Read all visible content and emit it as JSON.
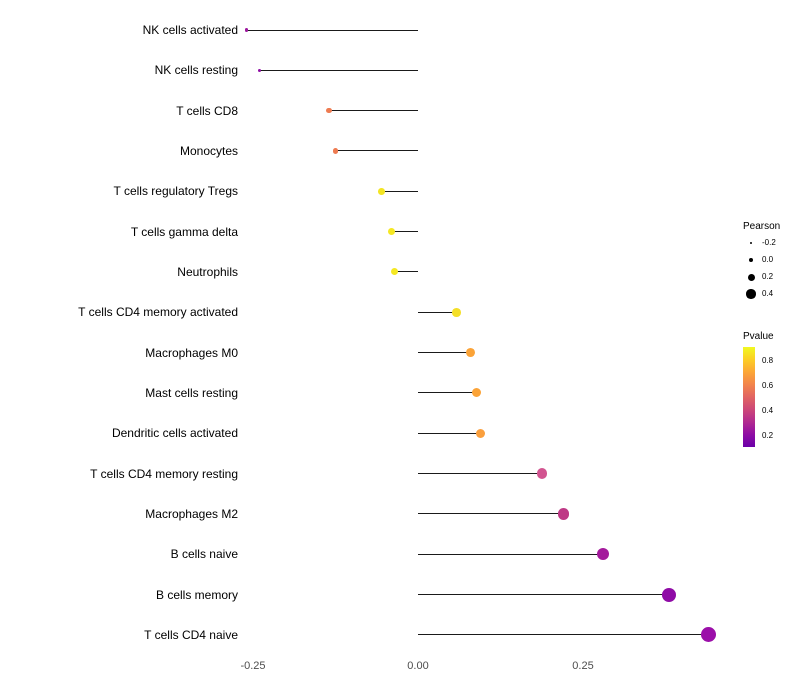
{
  "figure": {
    "background": "#ffffff"
  },
  "chart_data": {
    "type": "lollipop",
    "title": "",
    "xlabel": "",
    "ylabel": "",
    "orientation": "horizontal",
    "grid": "off",
    "baseline": 0.0,
    "x_axis": {
      "tick_values": [
        -0.25,
        0.0,
        0.25
      ],
      "tick_labels": [
        "-0.25",
        "0.00",
        "0.25"
      ],
      "range": [
        -0.28,
        0.49
      ]
    },
    "points": [
      {
        "label": "NK cells activated",
        "pearson": -0.26,
        "pvalue": 0.25,
        "color": "#9C179E"
      },
      {
        "label": "NK cells resting",
        "pearson": -0.24,
        "pvalue": 0.2,
        "color": "#8F0DA4"
      },
      {
        "label": "T cells CD8",
        "pearson": -0.135,
        "pvalue": 0.6,
        "color": "#EE7B51"
      },
      {
        "label": "Monocytes",
        "pearson": -0.125,
        "pvalue": 0.6,
        "color": "#EE7B51"
      },
      {
        "label": "T cells regulatory Tregs",
        "pearson": -0.055,
        "pvalue": 0.85,
        "color": "#F3E524"
      },
      {
        "label": "T cells gamma delta",
        "pearson": -0.04,
        "pvalue": 0.85,
        "color": "#F5E823"
      },
      {
        "label": "Neutrophils",
        "pearson": -0.035,
        "pvalue": 0.85,
        "color": "#F5E823"
      },
      {
        "label": "T cells CD4 memory activated",
        "pearson": 0.058,
        "pvalue": 0.8,
        "color": "#F4DF28"
      },
      {
        "label": "Macrophages M0",
        "pearson": 0.08,
        "pvalue": 0.7,
        "color": "#FBA337"
      },
      {
        "label": "Mast cells resting",
        "pearson": 0.088,
        "pvalue": 0.7,
        "color": "#FBA337"
      },
      {
        "label": "Dendritic cells activated",
        "pearson": 0.095,
        "pvalue": 0.68,
        "color": "#FA9F3D"
      },
      {
        "label": "T cells CD4 memory resting",
        "pearson": 0.188,
        "pvalue": 0.45,
        "color": "#D25490"
      },
      {
        "label": "Macrophages M2",
        "pearson": 0.22,
        "pvalue": 0.38,
        "color": "#BE3885"
      },
      {
        "label": "B cells naive",
        "pearson": 0.28,
        "pvalue": 0.3,
        "color": "#A41A9C"
      },
      {
        "label": "B cells memory",
        "pearson": 0.38,
        "pvalue": 0.18,
        "color": "#8F0BA6"
      },
      {
        "label": "T cells CD4 naive",
        "pearson": 0.44,
        "pvalue": 0.15,
        "color": "#9B0FA9"
      }
    ],
    "legend": {
      "position": "right",
      "size_legend": {
        "title": "Pearson",
        "entries": [
          {
            "label": "-0.2",
            "value": -0.2
          },
          {
            "label": "0.0",
            "value": 0.0
          },
          {
            "label": "0.2",
            "value": 0.2
          },
          {
            "label": "0.4",
            "value": 0.4
          }
        ]
      },
      "color_legend": {
        "title": "Pvalue",
        "tick_labels": [
          "0.8",
          "0.6",
          "0.4",
          "0.2"
        ],
        "tick_values": [
          0.8,
          0.6,
          0.4,
          0.2
        ],
        "domain": [
          0.9,
          0.1
        ],
        "gradient_top_to_bottom": [
          "#F0F921",
          "#FCCE25",
          "#FCA636",
          "#F2844B",
          "#E16462",
          "#CC4778",
          "#B12A90",
          "#8F0DA4",
          "#6A00A8"
        ]
      }
    }
  }
}
